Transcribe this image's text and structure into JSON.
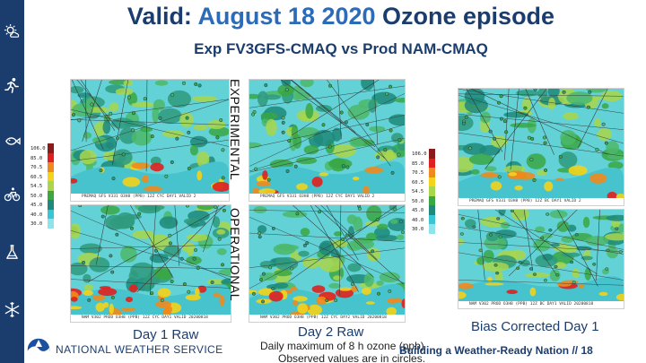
{
  "title": {
    "prefix": "Valid: ",
    "highlight": "August 18 2020",
    "suffix": " Ozone episode"
  },
  "subtitle": "Exp FV3GFS-CMAQ vs  Prod NAM-CMAQ",
  "side_labels": {
    "top": "EXPERIMENTAL",
    "bottom": "OPERATIONAL"
  },
  "colorbar": {
    "levels": [
      "106.0",
      "85.0",
      "70.5",
      "60.5",
      "54.5",
      "50.0",
      "45.0",
      "40.0",
      "30.0"
    ],
    "colors": [
      "#8b1b1b",
      "#e0201e",
      "#f08a1c",
      "#f4d31a",
      "#a9d64a",
      "#3aa743",
      "#1f8a7a",
      "#39c6d4",
      "#8fe3ea"
    ]
  },
  "panel_captions": {
    "exp_day1": "PREMAQ GFS V331  O3H8   (PPB)  12Z CYC DAY1 VALID 2",
    "exp_day2": "PREMAQ GFS V331  O3H8   (PPB)  12Z CYC DAY1 VALID 2",
    "exp_bc": "PREMAQ GFS V331  O3H8   (PPB)  12Z BC DAY1 VALID 2",
    "op_day1": "NAM V302  PROD  O3H8   (PPB)  12Z CYC DAY1 VALID 20200818",
    "op_day2": "NAM V302  PROD  O3H8   (PPB)  12Z CYC DAY2 VALID 20200818",
    "op_bc": "NAM V302  PROD  O3H8   (PPB)  12Z BC DAY1 VALID 20200818"
  },
  "labels": {
    "day1": "Day 1 Raw",
    "day2": "Day 2 Raw",
    "bias": "Bias Corrected Day 1"
  },
  "notes": {
    "line1": "Daily maximum of 8 h ozone (ppb)",
    "line2": "Observed values are in circles."
  },
  "agency": "NATIONAL WEATHER SERVICE",
  "footer": "Building a Weather-Ready Nation  //  18",
  "sidebar_icons": [
    "sun-cloud-icon",
    "runner-icon",
    "fish-icon",
    "bicycle-icon",
    "flask-icon",
    "snowflake-icon"
  ]
}
